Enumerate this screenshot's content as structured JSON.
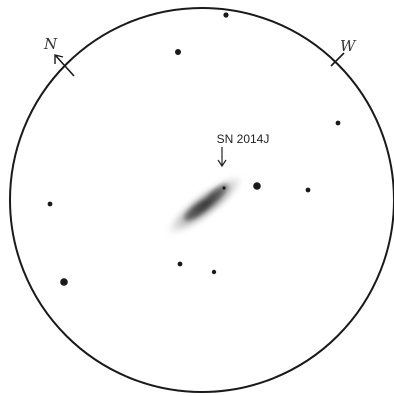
{
  "sketch": {
    "supernova_label": "SN 2014J",
    "north_label": "N",
    "west_label": "W",
    "ink_color": "#1a1a1a",
    "galaxy_color": "#555555",
    "paper_color": "#ffffff"
  }
}
